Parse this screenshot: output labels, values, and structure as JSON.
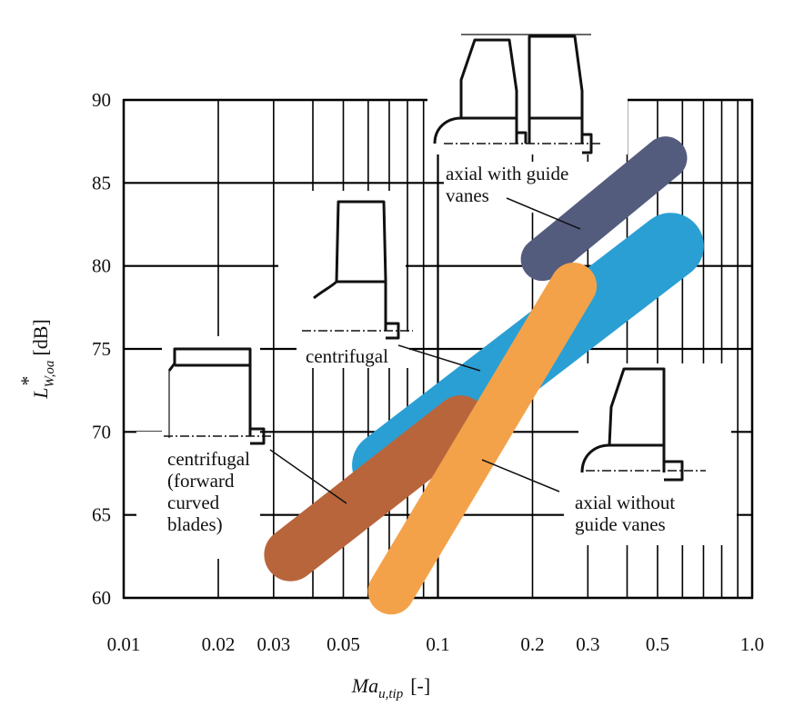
{
  "chart_data": {
    "type": "band-diagram",
    "title": "",
    "xlabel": "Ma",
    "xlabel_sub": "u,tip",
    "xlabel_unit": "[-]",
    "ylabel": "L",
    "ylabel_sub": "W,oa",
    "ylabel_sup": "*",
    "ylabel_unit": "[dB]",
    "xscale": "log",
    "xlim": [
      0.01,
      1.0
    ],
    "ylim": [
      60,
      90
    ],
    "x_ticks": [
      0.01,
      0.02,
      0.03,
      0.05,
      0.1,
      0.2,
      0.3,
      0.5,
      1.0
    ],
    "x_tick_labels": [
      "0.01",
      "0.02",
      "0.03",
      "0.05",
      "0.1",
      "0.2",
      "0.3",
      "0.5",
      "1.0"
    ],
    "y_ticks": [
      60,
      65,
      70,
      75,
      80,
      85,
      90
    ],
    "y_tick_labels": [
      "60",
      "65",
      "70",
      "75",
      "80",
      "85",
      "90"
    ],
    "grid": true,
    "series": [
      {
        "name": "axial with guide vanes",
        "color": "#545c7e",
        "x": [
          0.215,
          0.53
        ],
        "y": [
          80.4,
          86.5
        ],
        "width_db": 2.6
      },
      {
        "name": "centrifugal",
        "color": "#2a9fd4",
        "x": [
          0.068,
          0.55
        ],
        "y": [
          68.0,
          81.2
        ],
        "width_db": 4.0
      },
      {
        "name": "axial without guide vanes",
        "color": "#f4a24a",
        "x": [
          0.071,
          0.27
        ],
        "y": [
          60.4,
          78.8
        ],
        "width_db": 2.8
      },
      {
        "name": "centrifugal (forward curved blades)",
        "color": "#b8653c",
        "x": [
          0.034,
          0.118
        ],
        "y": [
          62.6,
          70.6
        ],
        "width_db": 3.2
      }
    ],
    "annotations": [
      {
        "lines": [
          "axial with guide",
          "vanes"
        ]
      },
      {
        "lines": [
          "centrifugal"
        ]
      },
      {
        "lines": [
          "centrifugal",
          "(forward",
          "curved",
          "blades)"
        ]
      },
      {
        "lines": [
          "axial without",
          "guide vanes"
        ]
      }
    ]
  }
}
